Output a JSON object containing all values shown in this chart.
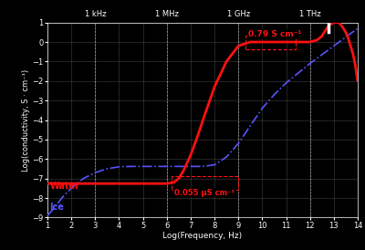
{
  "background_color": "#000000",
  "plot_bg_color": "#000000",
  "grid_color": "#505050",
  "xlabel": "Log(Frequency, Hz)",
  "ylabel": "Log(conductivity, S · cm⁻¹)",
  "xlim": [
    1,
    14
  ],
  "ylim": [
    -9,
    1
  ],
  "xticks": [
    1,
    2,
    3,
    4,
    5,
    6,
    7,
    8,
    9,
    10,
    11,
    12,
    13,
    14
  ],
  "yticks": [
    -9,
    -8,
    -7,
    -6,
    -5,
    -4,
    -3,
    -2,
    -1,
    0,
    1
  ],
  "freq_labels": [
    {
      "text": "1 kHz",
      "x": 3
    },
    {
      "text": "1 MHz",
      "x": 6
    },
    {
      "text": "1 GHz",
      "x": 9
    },
    {
      "text": "1 THz",
      "x": 12
    }
  ],
  "water_color": "#ff1010",
  "ice_color": "#5555ff",
  "water_label": "Water",
  "ice_label": "Ice",
  "annotation_079": "0.79 S cm⁻¹",
  "annotation_055": "0.055 μS cm⁻¹",
  "water_x": [
    1.0,
    2.0,
    3.0,
    4.0,
    5.0,
    5.5,
    6.0,
    6.3,
    6.5,
    6.7,
    7.0,
    7.3,
    7.6,
    8.0,
    8.5,
    9.0,
    9.5,
    10.0,
    10.5,
    11.0,
    11.5,
    12.0,
    12.3,
    12.5,
    12.7,
    12.85,
    13.0,
    13.1,
    13.15,
    13.2,
    13.25,
    13.3,
    13.4,
    13.5,
    13.6,
    13.7,
    13.8,
    13.9,
    14.0
  ],
  "water_y": [
    -7.26,
    -7.26,
    -7.26,
    -7.26,
    -7.26,
    -7.26,
    -7.26,
    -7.2,
    -7.0,
    -6.6,
    -5.8,
    -4.8,
    -3.7,
    -2.3,
    -1.0,
    -0.2,
    0.0,
    0.0,
    0.0,
    0.0,
    0.0,
    0.0,
    0.1,
    0.3,
    0.7,
    0.9,
    1.0,
    1.0,
    1.0,
    0.98,
    0.95,
    0.88,
    0.7,
    0.5,
    0.2,
    -0.2,
    -0.6,
    -1.2,
    -2.0
  ],
  "ice_x": [
    1.0,
    1.3,
    1.6,
    2.0,
    2.5,
    3.0,
    3.5,
    4.0,
    4.5,
    5.0,
    5.5,
    6.0,
    6.5,
    7.0,
    7.5,
    8.0,
    8.5,
    9.0,
    9.5,
    10.0,
    10.5,
    11.0,
    11.5,
    12.0,
    12.5,
    13.0,
    13.5,
    14.0
  ],
  "ice_y": [
    -8.9,
    -8.5,
    -8.0,
    -7.5,
    -7.0,
    -6.7,
    -6.5,
    -6.4,
    -6.38,
    -6.38,
    -6.38,
    -6.38,
    -6.38,
    -6.38,
    -6.38,
    -6.3,
    -5.9,
    -5.2,
    -4.3,
    -3.4,
    -2.7,
    -2.1,
    -1.6,
    -1.1,
    -0.65,
    -0.2,
    0.25,
    0.7
  ]
}
